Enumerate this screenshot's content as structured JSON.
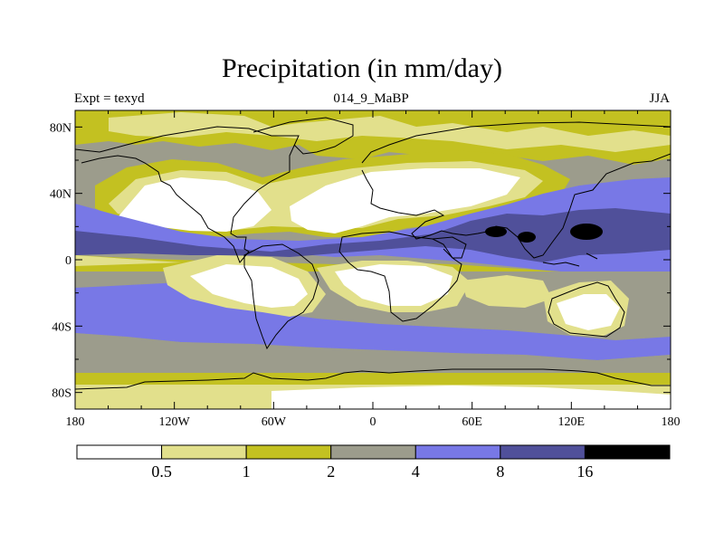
{
  "title": "Precipitation (in mm/day)",
  "left_label": "Expt = texyd",
  "center_label": "014_9_MaBP",
  "right_label": "JJA",
  "map": {
    "projection": "cylindrical-equidistant",
    "lon_range": [
      -180,
      180
    ],
    "lat_range": [
      -90,
      90
    ],
    "x_ticks": [
      {
        "lon": -180,
        "label": "180"
      },
      {
        "lon": -120,
        "label": "120W"
      },
      {
        "lon": -60,
        "label": "60W"
      },
      {
        "lon": 0,
        "label": "0"
      },
      {
        "lon": 60,
        "label": "60E"
      },
      {
        "lon": 120,
        "label": "120E"
      },
      {
        "lon": 180,
        "label": "180"
      }
    ],
    "y_ticks": [
      {
        "lat": 80,
        "label": "80N"
      },
      {
        "lat": 40,
        "label": "40N"
      },
      {
        "lat": 0,
        "label": "0"
      },
      {
        "lat": -40,
        "label": "40S"
      },
      {
        "lat": -80,
        "label": "80S"
      }
    ]
  },
  "colorbar": {
    "colors": [
      "#ffffff",
      "#e2e08c",
      "#c3c121",
      "#9c9c8c",
      "#7878e6",
      "#50509a",
      "#000000"
    ],
    "boundaries": [
      "0.5",
      "1",
      "2",
      "4",
      "8",
      "16"
    ]
  },
  "colors": {
    "white": "#ffffff",
    "light_yellow": "#e2e08c",
    "olive": "#c3c121",
    "gray": "#9c9c8c",
    "blue": "#7878e6",
    "dark_blue": "#50509a",
    "black": "#000000"
  }
}
